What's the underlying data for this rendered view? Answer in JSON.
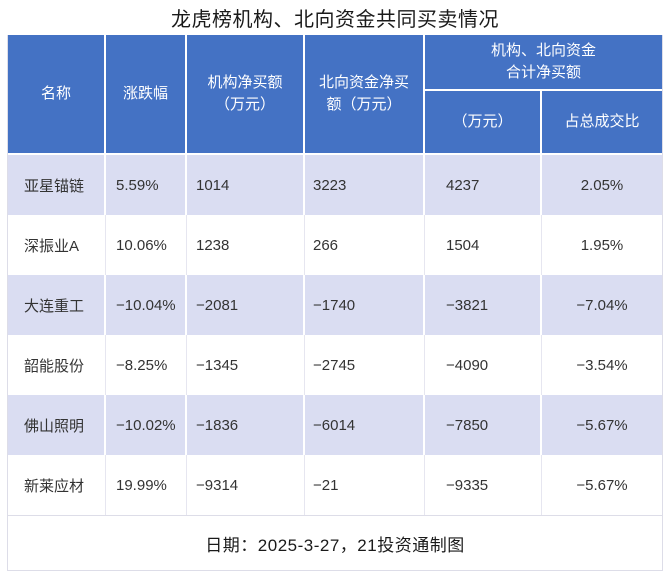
{
  "title": "龙虎榜机构、北向资金共同买卖情况",
  "colors": {
    "header_bg": "#4472c4",
    "banded_row_bg": "#daddf2",
    "plain_row_bg": "#ffffff",
    "header_text": "#ffffff",
    "body_text": "#333333"
  },
  "table": {
    "headers": {
      "name": "名称",
      "change": "涨跌幅",
      "inst_net_buy": "机构净买额\n（万元）",
      "north_net_buy": "北向资金净买\n额（万元）",
      "combined_group": "机构、北向资金\n合计净买额",
      "combined_amount": "（万元）",
      "combined_pct": "占总成交比"
    },
    "rows": [
      {
        "name": "亚星锚链",
        "change": "5.59%",
        "inst": "1014",
        "north": "3223",
        "combined": "4237",
        "pct": "2.05%"
      },
      {
        "name": "深振业A",
        "change": "10.06%",
        "inst": "1238",
        "north": "266",
        "combined": "1504",
        "pct": "1.95%"
      },
      {
        "name": "大连重工",
        "change": "−10.04%",
        "inst": "−2081",
        "north": "−1740",
        "combined": "−3821",
        "pct": "−7.04%"
      },
      {
        "name": "韶能股份",
        "change": "−8.25%",
        "inst": "−1345",
        "north": "−2745",
        "combined": "−4090",
        "pct": "−3.54%"
      },
      {
        "name": "佛山照明",
        "change": "−10.02%",
        "inst": "−1836",
        "north": "−6014",
        "combined": "−7850",
        "pct": "−5.67%"
      },
      {
        "name": "新莱应材",
        "change": "19.99%",
        "inst": "−9314",
        "north": "−21",
        "combined": "−9335",
        "pct": "−5.67%"
      }
    ]
  },
  "footer": {
    "note": "日期：2025-3-27，21投资通制图"
  },
  "chart_data": {
    "type": "table",
    "title": "龙虎榜机构、北向资金共同买卖情况",
    "columns": [
      "名称",
      "涨跌幅",
      "机构净买额（万元）",
      "北向资金净买额（万元）",
      "机构、北向资金合计净买额（万元）",
      "机构、北向资金合计净买额占总成交比"
    ],
    "rows": [
      [
        "亚星锚链",
        5.59,
        1014,
        3223,
        4237,
        2.05
      ],
      [
        "深振业A",
        10.06,
        1238,
        266,
        1504,
        1.95
      ],
      [
        "大连重工",
        -10.04,
        -2081,
        -1740,
        -3821,
        -7.04
      ],
      [
        "韶能股份",
        -8.25,
        -1345,
        -2745,
        -4090,
        -3.54
      ],
      [
        "佛山照明",
        -10.02,
        -1836,
        -6014,
        -7850,
        -5.67
      ],
      [
        "新莱应材",
        19.99,
        -9314,
        -21,
        -9335,
        -5.67
      ]
    ],
    "units": {
      "涨跌幅": "%",
      "净买额": "万元",
      "占总成交比": "%"
    },
    "source_note": "日期：2025-3-27，21投资通制图"
  }
}
